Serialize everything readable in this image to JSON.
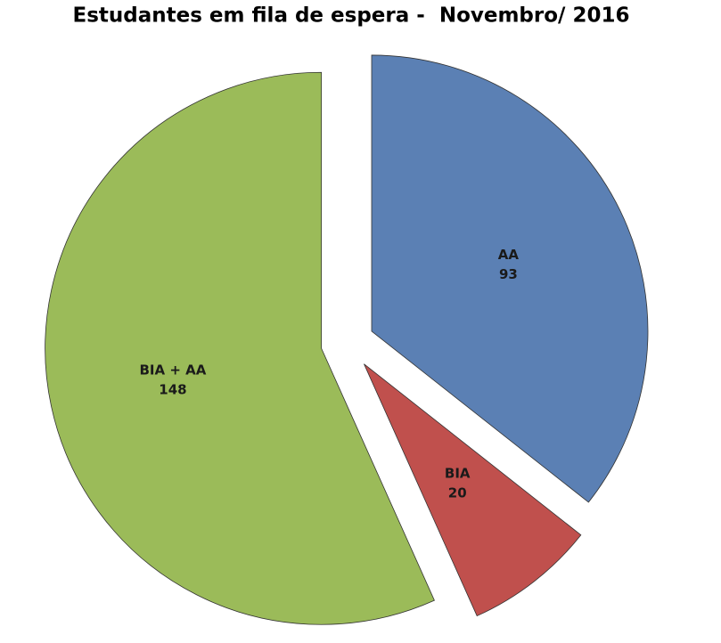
{
  "chart_data": {
    "type": "pie",
    "title": "Estudantes em fila de espera -  Novembro/ 2016",
    "categories": [
      "AA",
      "BIA",
      "BIA + AA"
    ],
    "values": [
      93,
      20,
      148
    ],
    "colors": [
      "#5b80b4",
      "#c0504d",
      "#9bbb59"
    ],
    "exploded": true
  }
}
